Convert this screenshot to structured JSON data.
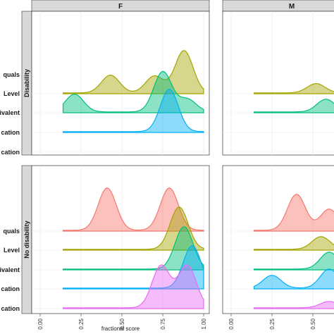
{
  "chart_data": [
    {
      "type": "area",
      "title": "",
      "xlabel": "fractional score",
      "ylabel": "",
      "facet_columns": [
        "F",
        "M"
      ],
      "facet_rows": [
        "Disability",
        "No disability"
      ],
      "xlim": [
        0,
        1
      ],
      "x_ticks": [
        "0.00",
        "0.25",
        "0.50",
        "0.75",
        "1.00"
      ],
      "y_tick_labels_visible": [
        "quals",
        "Level",
        "ivalent",
        "cation",
        "cation"
      ],
      "grid": true,
      "legend": "none",
      "colors": [
        "#f8766d",
        "#a3a500",
        "#00bf7d",
        "#00b0f6",
        "#e76bf3"
      ],
      "series": [
        {
          "facet": "Disability / F",
          "ridges": [
            {
              "color_index": 1,
              "peaks": [
                {
                  "x": 0.43,
                  "height": 0.42
                },
                {
                  "x": 0.7,
                  "height": 0.4
                },
                {
                  "x": 0.88,
                  "height": 1.0
                }
              ]
            },
            {
              "color_index": 2,
              "peaks": [
                {
                  "x": 0.21,
                  "height": 0.42
                },
                {
                  "x": 0.75,
                  "height": 0.95
                },
                {
                  "x": 0.9,
                  "height": 0.3
                }
              ]
            },
            {
              "color_index": 3,
              "peaks": [
                {
                  "x": 0.79,
                  "height": 1.0
                }
              ]
            }
          ]
        },
        {
          "facet": "Disability / M",
          "ridges": [
            {
              "color_index": 1,
              "peaks": [
                {
                  "x": 0.52,
                  "height": 0.22
                }
              ]
            },
            {
              "color_index": 2,
              "peaks": [
                {
                  "x": 0.58,
                  "height": 0.3
                }
              ]
            }
          ]
        },
        {
          "facet": "No disability / F",
          "ridges": [
            {
              "color_index": 0,
              "peaks": [
                {
                  "x": 0.41,
                  "height": 1.0
                },
                {
                  "x": 0.79,
                  "height": 1.0
                }
              ]
            },
            {
              "color_index": 1,
              "peaks": [
                {
                  "x": 0.85,
                  "height": 1.0
                }
              ]
            },
            {
              "color_index": 2,
              "peaks": [
                {
                  "x": 0.88,
                  "height": 1.0
                }
              ]
            },
            {
              "color_index": 3,
              "peaks": [
                {
                  "x": 0.93,
                  "height": 1.0
                }
              ]
            },
            {
              "color_index": 4,
              "peaks": [
                {
                  "x": 0.74,
                  "height": 1.0
                },
                {
                  "x": 0.9,
                  "height": 1.0
                }
              ]
            }
          ]
        },
        {
          "facet": "No disability / M",
          "ridges": [
            {
              "color_index": 0,
              "peaks": [
                {
                  "x": 0.4,
                  "height": 0.85
                },
                {
                  "x": 0.6,
                  "height": 0.5
                }
              ]
            },
            {
              "color_index": 1,
              "peaks": [
                {
                  "x": 0.55,
                  "height": 0.3
                }
              ]
            },
            {
              "color_index": 2,
              "peaks": [
                {
                  "x": 0.6,
                  "height": 0.4
                }
              ]
            },
            {
              "color_index": 3,
              "peaks": [
                {
                  "x": 0.25,
                  "height": 0.3
                },
                {
                  "x": 0.6,
                  "height": 0.45
                }
              ]
            },
            {
              "color_index": 4,
              "peaks": [
                {
                  "x": 0.6,
                  "height": 0.15
                }
              ]
            }
          ]
        }
      ]
    }
  ]
}
